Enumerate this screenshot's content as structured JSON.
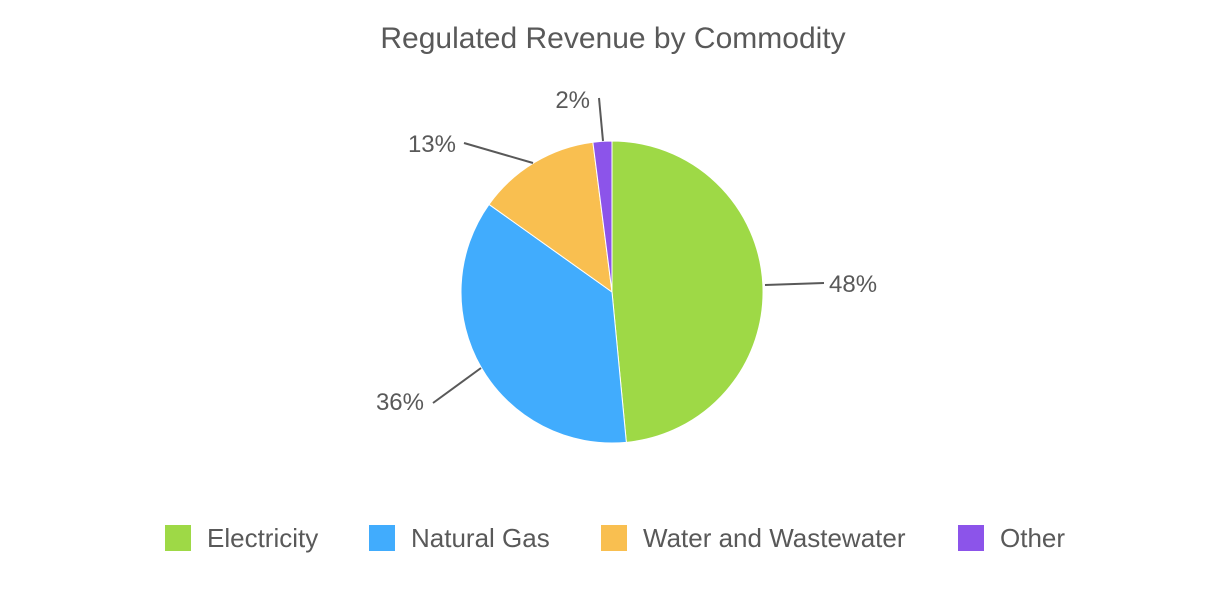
{
  "chart_data": {
    "type": "pie",
    "title": "Regulated Revenue by Commodity",
    "categories": [
      "Electricity",
      "Natural Gas",
      "Water and Wastewater",
      "Other"
    ],
    "values": [
      48,
      36,
      13,
      2
    ],
    "value_labels": [
      "48%",
      "36%",
      "13%",
      "2%"
    ],
    "colors": [
      "#9ed946",
      "#41acfd",
      "#f9bf50",
      "#8c54ea"
    ],
    "start_angle": "12 o'clock",
    "direction": "clockwise",
    "legend_position": "bottom",
    "xlabel": "",
    "ylabel": ""
  },
  "legend": {
    "items": [
      {
        "label": "Electricity",
        "color": "#9ed946"
      },
      {
        "label": "Natural Gas",
        "color": "#41acfd"
      },
      {
        "label": "Water and Wastewater",
        "color": "#f9bf50"
      },
      {
        "label": "Other",
        "color": "#8c54ea"
      }
    ]
  }
}
